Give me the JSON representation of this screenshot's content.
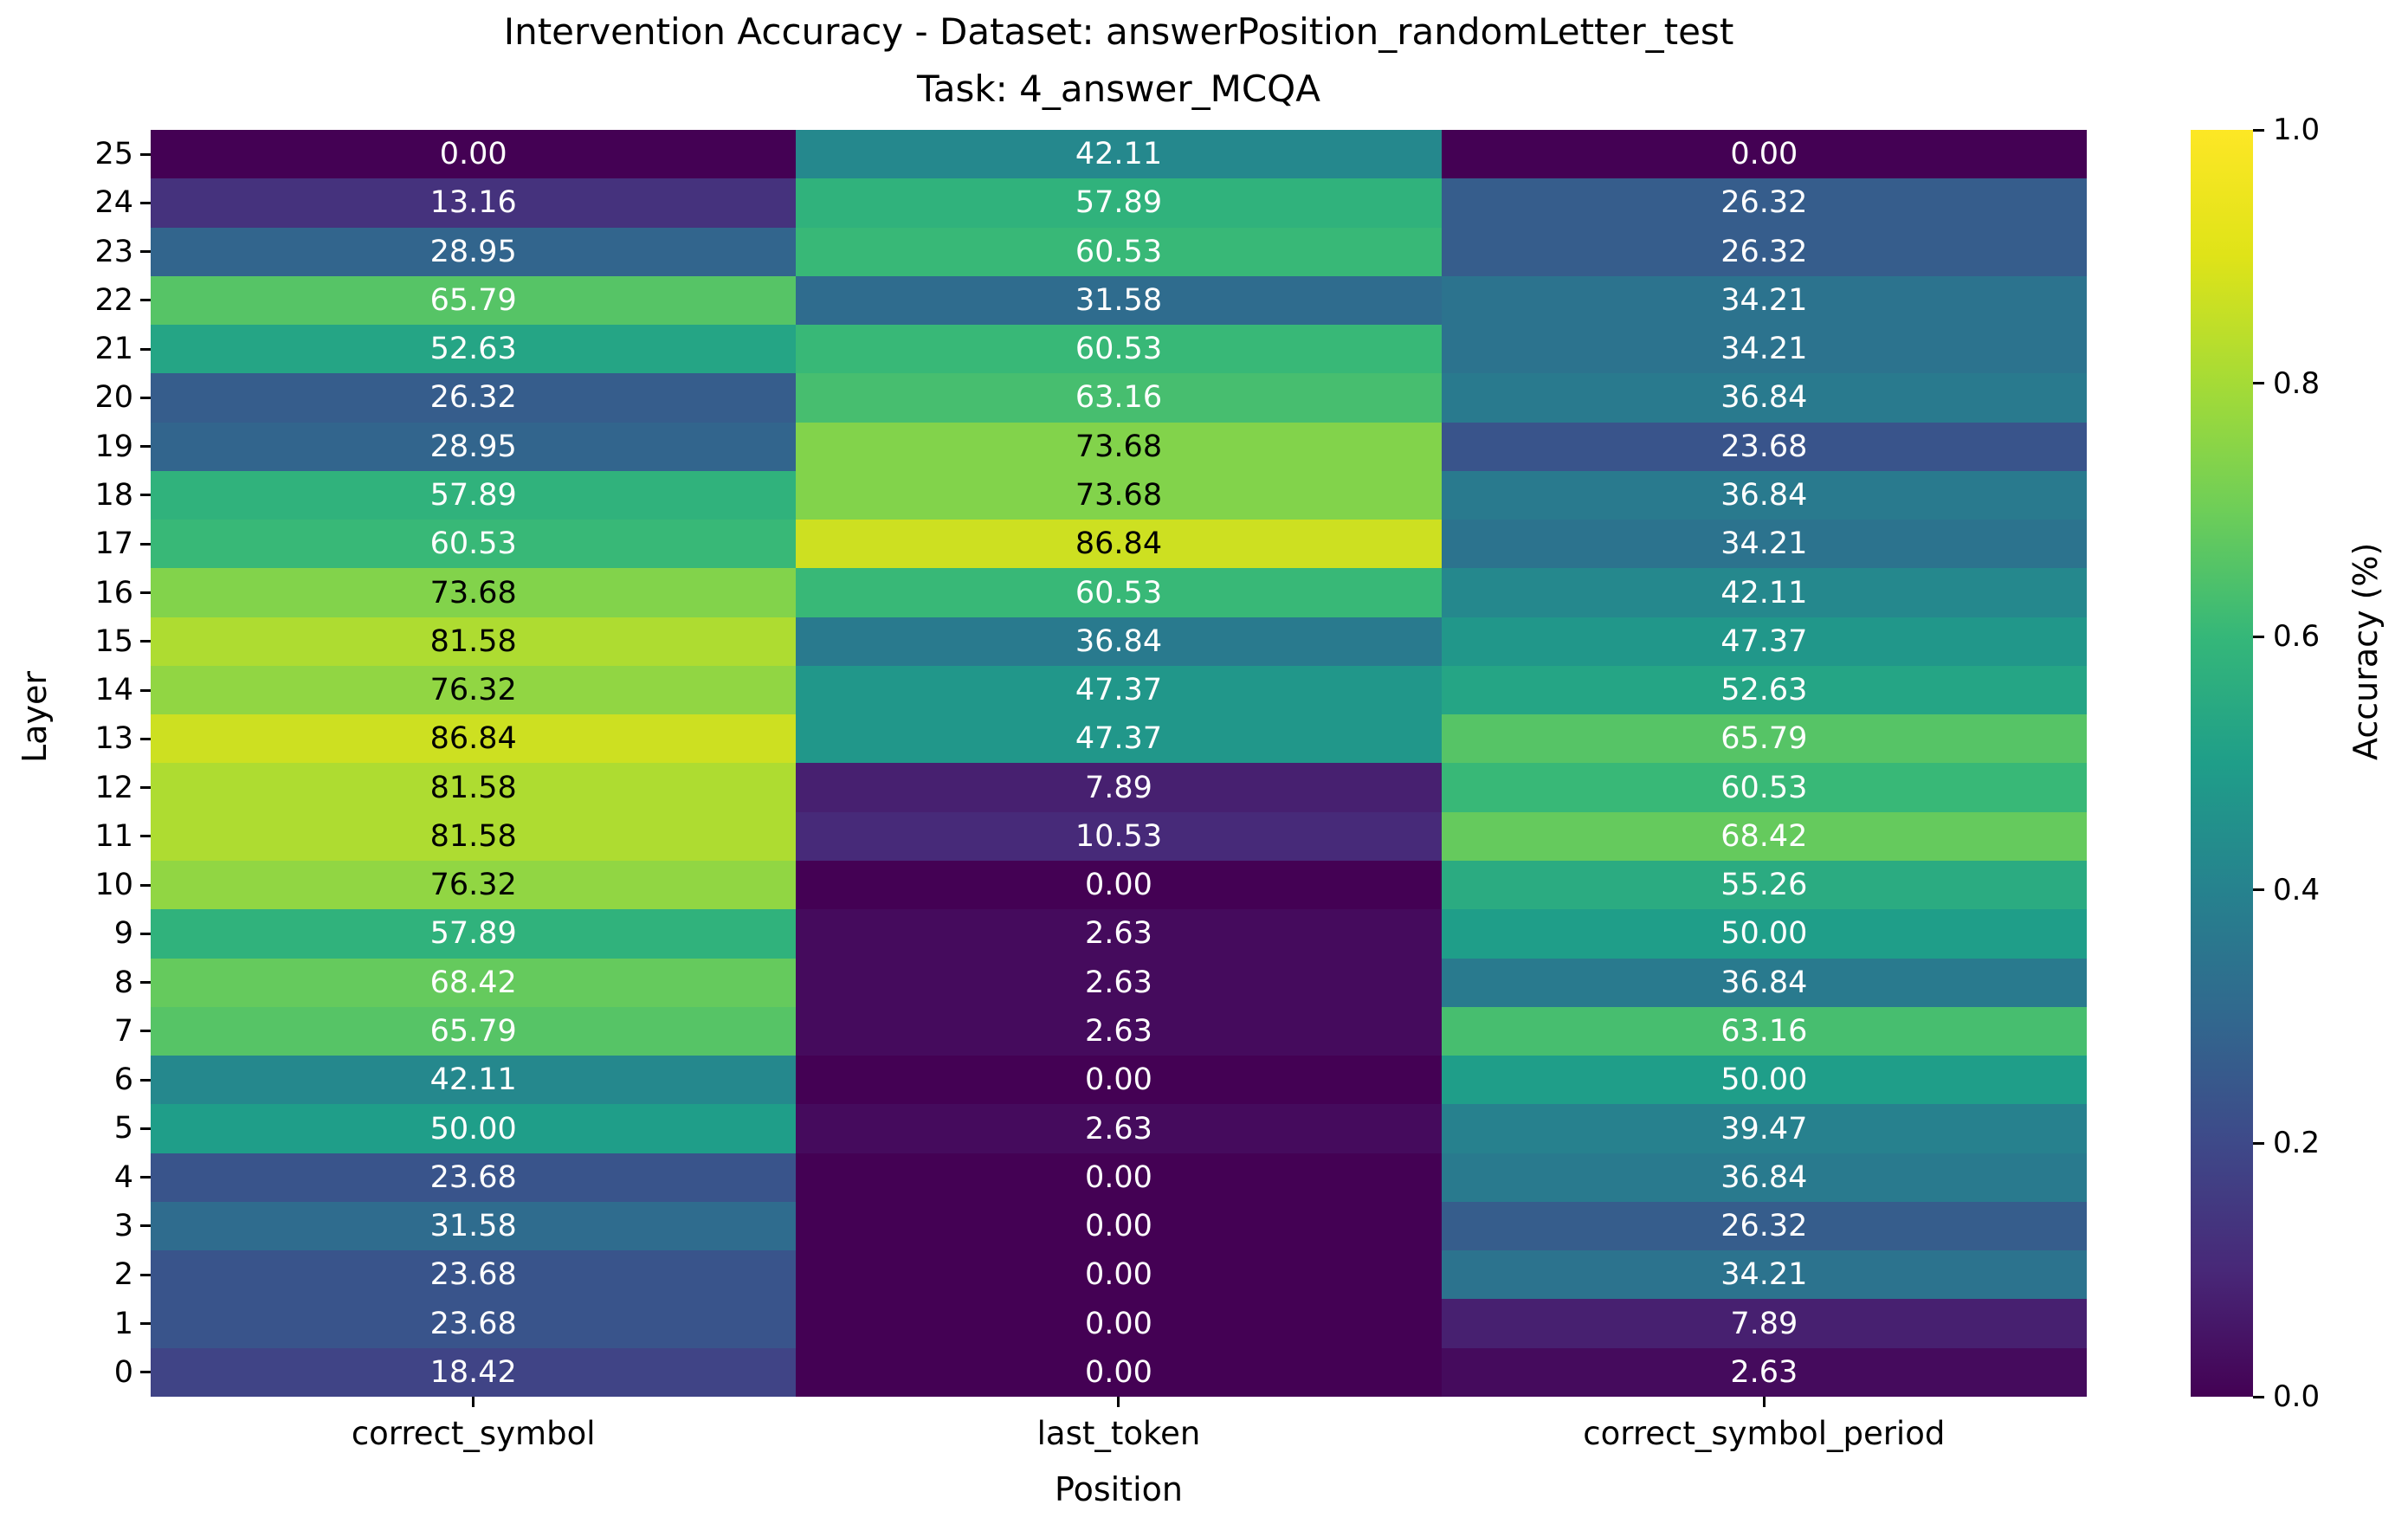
{
  "title_line1": "Intervention Accuracy - Dataset: answerPosition_randomLetter_test",
  "title_line2": "Task: 4_answer_MCQA",
  "chart_data": {
    "type": "heatmap",
    "title": "Intervention Accuracy - Dataset: answerPosition_randomLetter_test",
    "subtitle": "Task: 4_answer_MCQA",
    "xlabel": "Position",
    "ylabel": "Layer",
    "colorbar_label": "Accuracy (%)",
    "colorbar_ticks": [
      "1.0",
      "0.8",
      "0.6",
      "0.4",
      "0.2",
      "0.0"
    ],
    "colorbar_range": [
      0.0,
      1.0
    ],
    "colormap": "viridis",
    "colormap_anchors": [
      "#440154",
      "#482878",
      "#3e4989",
      "#31688e",
      "#26828e",
      "#1f9e89",
      "#35b779",
      "#6ece58",
      "#a5db36",
      "#dfe318",
      "#fde725"
    ],
    "annotation_text_colors": {
      "light_cell": "#000000",
      "dark_cell": "#ffffff"
    },
    "columns": [
      "correct_symbol",
      "last_token",
      "correct_symbol_period"
    ],
    "rows": [
      25,
      24,
      23,
      22,
      21,
      20,
      19,
      18,
      17,
      16,
      15,
      14,
      13,
      12,
      11,
      10,
      9,
      8,
      7,
      6,
      5,
      4,
      3,
      2,
      1,
      0
    ],
    "values": [
      [
        0.0,
        42.11,
        0.0
      ],
      [
        13.16,
        57.89,
        26.32
      ],
      [
        28.95,
        60.53,
        26.32
      ],
      [
        65.79,
        31.58,
        34.21
      ],
      [
        52.63,
        60.53,
        34.21
      ],
      [
        26.32,
        63.16,
        36.84
      ],
      [
        28.95,
        73.68,
        23.68
      ],
      [
        57.89,
        73.68,
        36.84
      ],
      [
        60.53,
        86.84,
        34.21
      ],
      [
        73.68,
        60.53,
        42.11
      ],
      [
        81.58,
        36.84,
        47.37
      ],
      [
        76.32,
        47.37,
        52.63
      ],
      [
        86.84,
        47.37,
        65.79
      ],
      [
        81.58,
        7.89,
        60.53
      ],
      [
        81.58,
        10.53,
        68.42
      ],
      [
        76.32,
        0.0,
        55.26
      ],
      [
        57.89,
        2.63,
        50.0
      ],
      [
        68.42,
        2.63,
        36.84
      ],
      [
        65.79,
        2.63,
        63.16
      ],
      [
        42.11,
        0.0,
        50.0
      ],
      [
        50.0,
        2.63,
        39.47
      ],
      [
        23.68,
        0.0,
        36.84
      ],
      [
        31.58,
        0.0,
        26.32
      ],
      [
        23.68,
        0.0,
        34.21
      ],
      [
        23.68,
        0.0,
        7.89
      ],
      [
        18.42,
        0.0,
        2.63
      ]
    ]
  }
}
